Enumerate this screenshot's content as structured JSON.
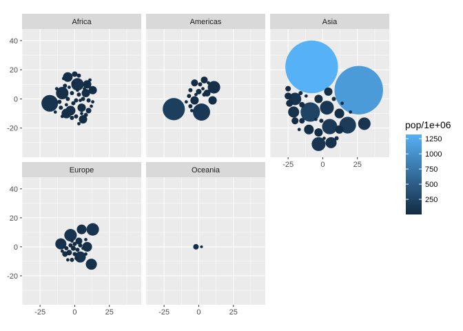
{
  "chart_data": {
    "type": "scatter",
    "subtype": "packed-bubble facets",
    "facets": [
      "Africa",
      "Americas",
      "Asia",
      "Europe",
      "Oceania"
    ],
    "xlim": [
      -38,
      48
    ],
    "ylim": [
      -40,
      48
    ],
    "x_ticks": [
      -25,
      0,
      25
    ],
    "y_ticks": [
      -20,
      0,
      20,
      40
    ],
    "grid": true,
    "legend": {
      "title": "pop/1e+06",
      "placement": "right",
      "type": "colorbar",
      "range": [
        0,
        1320
      ],
      "breaks": [
        250,
        500,
        750,
        1000,
        1250
      ],
      "low_color": "#132B43",
      "high_color": "#56B1F7"
    },
    "panel_background": "#EBEBEB",
    "strip_background": "#D9D9D9",
    "series": [
      {
        "facet": "Africa",
        "points": [
          {
            "x": -18,
            "y": -3,
            "r": 6,
            "pop": 80
          },
          {
            "x": -9,
            "y": 4,
            "r": 4.5,
            "pop": 50
          },
          {
            "x": -6,
            "y": -10,
            "r": 3.5,
            "pop": 35
          },
          {
            "x": -5,
            "y": 15,
            "r": 3.5,
            "pop": 30
          },
          {
            "x": 0,
            "y": 17,
            "r": 2,
            "pop": 10
          },
          {
            "x": 2,
            "y": 10,
            "r": 4.5,
            "pop": 60
          },
          {
            "x": -3,
            "y": -8,
            "r": 3.5,
            "pop": 40
          },
          {
            "x": 5,
            "y": -6,
            "r": 3,
            "pop": 25
          },
          {
            "x": 8,
            "y": 4,
            "r": 3,
            "pop": 25
          },
          {
            "x": 9,
            "y": 10,
            "r": 3,
            "pop": 20
          },
          {
            "x": 13,
            "y": 6,
            "r": 3,
            "pop": 20
          },
          {
            "x": 6,
            "y": -14,
            "r": 3,
            "pop": 20
          },
          {
            "x": 10,
            "y": -8,
            "r": 2,
            "pop": 10
          },
          {
            "x": 1,
            "y": -1,
            "r": 1.5,
            "pop": 5
          },
          {
            "x": -2,
            "y": 4,
            "r": 1.5,
            "pop": 5
          },
          {
            "x": 3,
            "y": 3,
            "r": 1.5,
            "pop": 5
          },
          {
            "x": 6,
            "y": 0,
            "r": 1.5,
            "pop": 5
          },
          {
            "x": -1,
            "y": -3,
            "r": 1.5,
            "pop": 5
          },
          {
            "x": 4,
            "y": -1,
            "r": 1.2,
            "pop": 3
          },
          {
            "x": -5,
            "y": 0,
            "r": 1.5,
            "pop": 5
          },
          {
            "x": -10,
            "y": -6,
            "r": 1.5,
            "pop": 5
          },
          {
            "x": -11,
            "y": -2,
            "r": 1.5,
            "pop": 5
          },
          {
            "x": -7,
            "y": 9,
            "r": 1.5,
            "pop": 5
          },
          {
            "x": -1,
            "y": 11,
            "r": 1.5,
            "pop": 5
          },
          {
            "x": 3,
            "y": 16,
            "r": 1.5,
            "pop": 5
          },
          {
            "x": 10,
            "y": -1,
            "r": 1.5,
            "pop": 5
          },
          {
            "x": 8,
            "y": -11,
            "r": 1.5,
            "pop": 5
          },
          {
            "x": 1,
            "y": -12,
            "r": 1.5,
            "pop": 5
          },
          {
            "x": -2,
            "y": -13,
            "r": 1.5,
            "pop": 5
          },
          {
            "x": -8,
            "y": 14,
            "r": 1.2,
            "pop": 3
          },
          {
            "x": 11,
            "y": 13,
            "r": 1.2,
            "pop": 3
          },
          {
            "x": 13,
            "y": -2,
            "r": 1.2,
            "pop": 3
          },
          {
            "x": -14,
            "y": -9,
            "r": 1.2,
            "pop": 3
          },
          {
            "x": -6,
            "y": -4,
            "r": 1.2,
            "pop": 3
          },
          {
            "x": 2,
            "y": 6,
            "r": 1.2,
            "pop": 3
          },
          {
            "x": 7,
            "y": 7,
            "r": 1.2,
            "pop": 3
          },
          {
            "x": 12,
            "y": -5,
            "r": 1.2,
            "pop": 3
          },
          {
            "x": -13,
            "y": 7,
            "r": 1.2,
            "pop": 3
          },
          {
            "x": 5,
            "y": -10,
            "r": 1.2,
            "pop": 3
          },
          {
            "x": -4,
            "y": 8,
            "r": 1.2,
            "pop": 3
          },
          {
            "x": 3,
            "y": -17,
            "r": 1.2,
            "pop": 3
          },
          {
            "x": -9,
            "y": -12,
            "r": 1.2,
            "pop": 3
          }
        ]
      },
      {
        "facet": "Americas",
        "points": [
          {
            "x": -18,
            "y": -7,
            "r": 8,
            "pop": 200
          },
          {
            "x": 2,
            "y": -9,
            "r": 6.2,
            "pop": 130
          },
          {
            "x": 11,
            "y": 8,
            "r": 4.5,
            "pop": 50
          },
          {
            "x": 10,
            "y": -1,
            "r": 3,
            "pop": 25
          },
          {
            "x": -3,
            "y": 11,
            "r": 2.5,
            "pop": 15
          },
          {
            "x": 4,
            "y": 13,
            "r": 2.5,
            "pop": 15
          },
          {
            "x": 6,
            "y": 4,
            "r": 2.5,
            "pop": 15
          },
          {
            "x": -3,
            "y": -1,
            "r": 3,
            "pop": 20
          },
          {
            "x": -6,
            "y": -5,
            "r": 1.5,
            "pop": 5
          },
          {
            "x": -7,
            "y": 2,
            "r": 1.5,
            "pop": 5
          },
          {
            "x": 0,
            "y": 5,
            "r": 2,
            "pop": 10
          },
          {
            "x": 4,
            "y": 3,
            "r": 1.5,
            "pop": 5
          },
          {
            "x": -6,
            "y": 6,
            "r": 1.5,
            "pop": 5
          },
          {
            "x": 1,
            "y": 10,
            "r": 1.5,
            "pop": 5
          },
          {
            "x": -5,
            "y": -8,
            "r": 1.2,
            "pop": 3
          },
          {
            "x": 7,
            "y": 11,
            "r": 1.2,
            "pop": 3
          },
          {
            "x": -9,
            "y": -2,
            "r": 1.2,
            "pop": 3
          },
          {
            "x": 3,
            "y": 7,
            "r": 1.2,
            "pop": 3
          },
          {
            "x": -2,
            "y": 3,
            "r": 1.2,
            "pop": 3
          }
        ]
      },
      {
        "facet": "Asia",
        "points": [
          {
            "x": -8,
            "y": 22,
            "r": 19,
            "pop": 1320
          },
          {
            "x": 26,
            "y": 6,
            "r": 17.5,
            "pop": 1100
          },
          {
            "x": -9,
            "y": -9,
            "r": 7,
            "pop": 240
          },
          {
            "x": 18,
            "y": -18,
            "r": 6,
            "pop": 170
          },
          {
            "x": 5,
            "y": -19,
            "r": 5.5,
            "pop": 140
          },
          {
            "x": 3,
            "y": -6,
            "r": 5,
            "pop": 110
          },
          {
            "x": 30,
            "y": -17,
            "r": 4.5,
            "pop": 90
          },
          {
            "x": -3,
            "y": -31,
            "r": 5,
            "pop": 100
          },
          {
            "x": 6,
            "y": -30,
            "r": 4,
            "pop": 70
          },
          {
            "x": -20,
            "y": 0,
            "r": 4.5,
            "pop": 80
          },
          {
            "x": -21,
            "y": -9,
            "r": 4,
            "pop": 70
          },
          {
            "x": 12,
            "y": -10,
            "r": 3.5,
            "pop": 40
          },
          {
            "x": -10,
            "y": -21,
            "r": 3.5,
            "pop": 40
          },
          {
            "x": -3,
            "y": -23,
            "r": 3,
            "pop": 30
          },
          {
            "x": 12,
            "y": -21,
            "r": 3,
            "pop": 30
          },
          {
            "x": -3,
            "y": 0,
            "r": 3,
            "pop": 25
          },
          {
            "x": 4,
            "y": 5,
            "r": 3,
            "pop": 25
          },
          {
            "x": -20,
            "y": -15,
            "r": 2.5,
            "pop": 20
          },
          {
            "x": -25,
            "y": 2,
            "r": 2.5,
            "pop": 15
          },
          {
            "x": -24,
            "y": -3,
            "r": 2.5,
            "pop": 15
          },
          {
            "x": -25,
            "y": 7,
            "r": 2,
            "pop": 10
          },
          {
            "x": -15,
            "y": -15,
            "r": 2,
            "pop": 10
          },
          {
            "x": -15,
            "y": -4,
            "r": 2,
            "pop": 10
          },
          {
            "x": 8,
            "y": 0,
            "r": 1.5,
            "pop": 5
          },
          {
            "x": -1,
            "y": -15,
            "r": 1.5,
            "pop": 5
          },
          {
            "x": -16,
            "y": 4,
            "r": 1.5,
            "pop": 5
          },
          {
            "x": 10,
            "y": -27,
            "r": 1.5,
            "pop": 5
          },
          {
            "x": -5,
            "y": -14,
            "r": 1.2,
            "pop": 3
          },
          {
            "x": 14,
            "y": -3,
            "r": 1.2,
            "pop": 3
          },
          {
            "x": -12,
            "y": 2,
            "r": 1.2,
            "pop": 3
          },
          {
            "x": 1,
            "y": -27,
            "r": 1.2,
            "pop": 3
          },
          {
            "x": 20,
            "y": -9,
            "r": 1.2,
            "pop": 3
          },
          {
            "x": -17,
            "y": -21,
            "r": 1.2,
            "pop": 3
          }
        ]
      },
      {
        "facet": "Europe",
        "points": [
          {
            "x": -3,
            "y": 8,
            "r": 4.5,
            "pop": 80
          },
          {
            "x": 13,
            "y": 12,
            "r": 4.5,
            "pop": 80
          },
          {
            "x": 4,
            "y": -7,
            "r": 4,
            "pop": 65
          },
          {
            "x": 12,
            "y": -12,
            "r": 4,
            "pop": 60
          },
          {
            "x": -10,
            "y": 2,
            "r": 4,
            "pop": 60
          },
          {
            "x": 5,
            "y": 12,
            "r": 3.5,
            "pop": 45
          },
          {
            "x": 9,
            "y": 0,
            "r": 3.5,
            "pop": 40
          },
          {
            "x": 3,
            "y": 4,
            "r": 2.5,
            "pop": 20
          },
          {
            "x": -4,
            "y": -4,
            "r": 2,
            "pop": 10
          },
          {
            "x": -7,
            "y": -5,
            "r": 2,
            "pop": 10
          },
          {
            "x": -1,
            "y": -1,
            "r": 1.8,
            "pop": 8
          },
          {
            "x": 2,
            "y": -2,
            "r": 1.5,
            "pop": 5
          },
          {
            "x": -3,
            "y": 1,
            "r": 1.5,
            "pop": 5
          },
          {
            "x": 0,
            "y": 2,
            "r": 1.5,
            "pop": 5
          },
          {
            "x": 4,
            "y": 1,
            "r": 1.5,
            "pop": 5
          },
          {
            "x": -6,
            "y": -1,
            "r": 1.5,
            "pop": 5
          },
          {
            "x": 0,
            "y": -5,
            "r": 1.5,
            "pop": 5
          },
          {
            "x": -2,
            "y": -9,
            "r": 1.5,
            "pop": 5
          },
          {
            "x": -5,
            "y": -9,
            "r": 1.2,
            "pop": 3
          },
          {
            "x": 1,
            "y": -8,
            "r": 1.2,
            "pop": 3
          },
          {
            "x": 8,
            "y": 5,
            "r": 1.2,
            "pop": 3
          },
          {
            "x": 6,
            "y": -1,
            "r": 1.2,
            "pop": 3
          },
          {
            "x": -2,
            "y": 4,
            "r": 1.2,
            "pop": 3
          },
          {
            "x": 8,
            "y": -5,
            "r": 1.2,
            "pop": 3
          },
          {
            "x": -9,
            "y": -3,
            "r": 1.2,
            "pop": 3
          }
        ]
      },
      {
        "facet": "Oceania",
        "points": [
          {
            "x": -2,
            "y": 0,
            "r": 2,
            "pop": 20
          },
          {
            "x": 2,
            "y": 0,
            "r": 1,
            "pop": 4
          }
        ]
      }
    ]
  }
}
